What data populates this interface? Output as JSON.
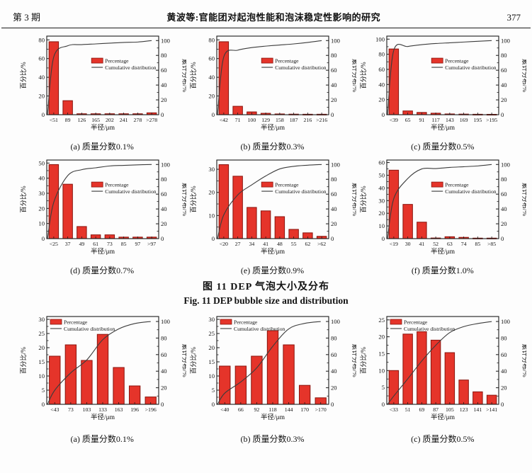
{
  "header": {
    "issue": "第 3 期",
    "title": "黄波等:官能团对起泡性能和泡沫稳定性影响的研究",
    "page_number": "377"
  },
  "figure11": {
    "caption_zh": "图 11   DEP 气泡大小及分布",
    "caption_en": "Fig. 11   DEP bubble size and distribution"
  },
  "shared": {
    "ylabel_left": "百分比/%",
    "ylabel_right": "累计分布/%",
    "xlabel": "半径/μm",
    "legend_bar": "Percentage",
    "legend_line": "Cumulative distribution",
    "colors": {
      "bar_fill": "#e5342a",
      "bar_stroke": "#8a140d",
      "line": "#3c3c3c",
      "axis": "#1a1a1a"
    }
  },
  "chart_data": [
    {
      "type": "bar",
      "panel": "fig11",
      "caption": "(a) 质量分数0.1%",
      "legend_pos": "mid",
      "categories": [
        "<51",
        "89",
        "126",
        "165",
        "202",
        "241",
        "278",
        ">278"
      ],
      "values": [
        78,
        15,
        1,
        1,
        1,
        1,
        1,
        2
      ],
      "cumulative": [
        78,
        93,
        94.5,
        95.5,
        96.5,
        97.5,
        98,
        100
      ],
      "ylim": [
        0,
        84
      ],
      "yticks": [
        0,
        20,
        40,
        60,
        80
      ],
      "right_yticks": [
        0,
        20,
        40,
        60,
        80,
        100
      ]
    },
    {
      "type": "bar",
      "panel": "fig11",
      "caption": "(b) 质量分数0.3%",
      "legend_pos": "mid",
      "categories": [
        "<42",
        "71",
        "100",
        "129",
        "158",
        "187",
        "216",
        ">216"
      ],
      "values": [
        78,
        9,
        3,
        1.5,
        0.8,
        0.6,
        0.5,
        0.5
      ],
      "cumulative": [
        78,
        87,
        90.5,
        92.5,
        94,
        95.5,
        97.5,
        100
      ],
      "ylim": [
        0,
        84
      ],
      "yticks": [
        0,
        20,
        40,
        60,
        80
      ],
      "right_yticks": [
        0,
        20,
        40,
        60,
        80,
        100
      ]
    },
    {
      "type": "bar",
      "panel": "fig11",
      "caption": "(c) 质量分数0.5%",
      "legend_pos": "mid",
      "categories": [
        "<39",
        "65",
        "91",
        "117",
        "143",
        "169",
        "195",
        ">195"
      ],
      "values": [
        87,
        5,
        3,
        2,
        1,
        0.8,
        0.6,
        0.5
      ],
      "cumulative": [
        87,
        92,
        94.5,
        96,
        97,
        98,
        99,
        100
      ],
      "ylim": [
        0,
        104
      ],
      "yticks": [
        0,
        20,
        40,
        60,
        80,
        100
      ],
      "right_yticks": [
        0,
        20,
        40,
        60,
        80,
        100
      ]
    },
    {
      "type": "bar",
      "panel": "fig11",
      "caption": "(d) 质量分数0.7%",
      "legend_pos": "mid",
      "categories": [
        "<25",
        "37",
        "49",
        "61",
        "73",
        "85",
        "97",
        ">97"
      ],
      "values": [
        49,
        36,
        8,
        2.5,
        2.5,
        1,
        1,
        1
      ],
      "cumulative": [
        49,
        85,
        93,
        95.5,
        98,
        98.8,
        99.5,
        100
      ],
      "ylim": [
        0,
        52
      ],
      "yticks": [
        0,
        10,
        20,
        30,
        40,
        50
      ],
      "right_yticks": [
        0,
        20,
        40,
        60,
        80,
        100
      ]
    },
    {
      "type": "bar",
      "panel": "fig11",
      "caption": "(e) 质量分数0.9%",
      "legend_pos": "mid",
      "categories": [
        "<20",
        "27",
        "34",
        "41",
        "48",
        "55",
        "62",
        ">62"
      ],
      "values": [
        32,
        27,
        13.5,
        12,
        9.5,
        4,
        2.5,
        1
      ],
      "cumulative": [
        32,
        59,
        72.5,
        84.5,
        94,
        97.5,
        99,
        100
      ],
      "ylim": [
        0,
        34
      ],
      "yticks": [
        0,
        10,
        20,
        30
      ],
      "right_yticks": [
        0,
        20,
        40,
        60,
        80,
        100
      ]
    },
    {
      "type": "bar",
      "panel": "fig11",
      "caption": "(f) 质量分数1.0%",
      "legend_pos": "mid",
      "categories": [
        "<19",
        "30",
        "41",
        "52",
        "63",
        "74",
        "85",
        ">85"
      ],
      "values": [
        54,
        27,
        13,
        0.5,
        1.5,
        1,
        0.4,
        0.4
      ],
      "cumulative": [
        54,
        81,
        94,
        94.5,
        96,
        97,
        98,
        100
      ],
      "ylim": [
        0,
        62
      ],
      "yticks": [
        0,
        10,
        20,
        30,
        40,
        50,
        60
      ],
      "right_yticks": [
        0,
        20,
        40,
        60,
        80,
        100
      ]
    },
    {
      "type": "bar",
      "panel": "fig12",
      "caption": "(a) 质量分数0.1%",
      "legend_pos": "topleft",
      "categories": [
        "<43",
        "73",
        "103",
        "133",
        "163",
        "196",
        ">196"
      ],
      "values": [
        17,
        21,
        15.5,
        24.7,
        13,
        6.5,
        2.6
      ],
      "cumulative": [
        17,
        38,
        53.5,
        78,
        91,
        97.5,
        100
      ],
      "ylim": [
        0,
        31
      ],
      "yticks": [
        0,
        5,
        10,
        15,
        20,
        25,
        30
      ],
      "right_yticks": [
        0,
        20,
        40,
        60,
        80,
        100
      ]
    },
    {
      "type": "bar",
      "panel": "fig12",
      "caption": "(b) 质量分数0.3%",
      "legend_pos": "topleft",
      "categories": [
        "<40",
        "66",
        "92",
        "118",
        "144",
        "170",
        ">170"
      ],
      "values": [
        13.5,
        13.5,
        17,
        26,
        21,
        6.7,
        2.3
      ],
      "cumulative": [
        13.5,
        27,
        44,
        70,
        91,
        97.7,
        100
      ],
      "ylim": [
        0,
        31
      ],
      "yticks": [
        0,
        5,
        10,
        15,
        20,
        25,
        30
      ],
      "right_yticks": [
        0,
        20,
        40,
        60,
        80,
        100
      ]
    },
    {
      "type": "bar",
      "panel": "fig12",
      "caption": "(c) 质量分数0.5%",
      "legend_pos": "topleft",
      "categories": [
        "<33",
        "51",
        "69",
        "87",
        "105",
        "123",
        "141",
        ">141"
      ],
      "values": [
        10,
        20.8,
        21.5,
        19,
        15.3,
        7.2,
        3.7,
        2.7
      ],
      "cumulative": [
        10,
        30.8,
        52.3,
        71.3,
        86.6,
        93.8,
        97.5,
        100
      ],
      "ylim": [
        0,
        26
      ],
      "yticks": [
        0,
        5,
        10,
        15,
        20,
        25
      ],
      "right_yticks": [
        0,
        20,
        40,
        60,
        80,
        100
      ]
    }
  ]
}
